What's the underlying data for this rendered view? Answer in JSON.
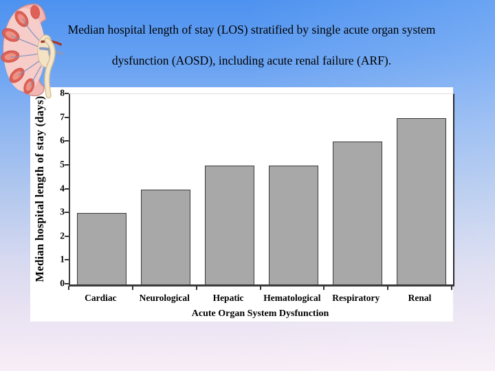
{
  "slide": {
    "title_line1": "Median hospital length of stay (LOS) stratified by single acute organ system",
    "title_line2": "dysfunction (AOSD), including acute renal failure (ARF)."
  },
  "chart_data": {
    "type": "bar",
    "categories": [
      "Cardiac",
      "Neurological",
      "Hepatic",
      "Hematological",
      "Respiratory",
      "Renal"
    ],
    "values": [
      3,
      4,
      5,
      5,
      6,
      7
    ],
    "title": "",
    "xlabel": "Acute Organ System Dysfunction",
    "ylabel": "Median hospital length of stay (days)",
    "ylim": [
      0,
      8
    ],
    "ytick_step": 1,
    "grid": false,
    "legend": false,
    "bar_color": "#a8a8a8",
    "bar_border_color": "#383838"
  },
  "icons": {
    "kidney_illustration": "anatomical kidney cross-section with renal pyramids, pelvis and ureter"
  },
  "theme": {
    "bg-top": "#4d92f0",
    "bg-mid": "#b2c8ee",
    "bg-bottom": "#f8eef7",
    "panel-bg": "#ffffff",
    "bar-fill": "#a8a8a8",
    "bar-border": "#383838"
  }
}
